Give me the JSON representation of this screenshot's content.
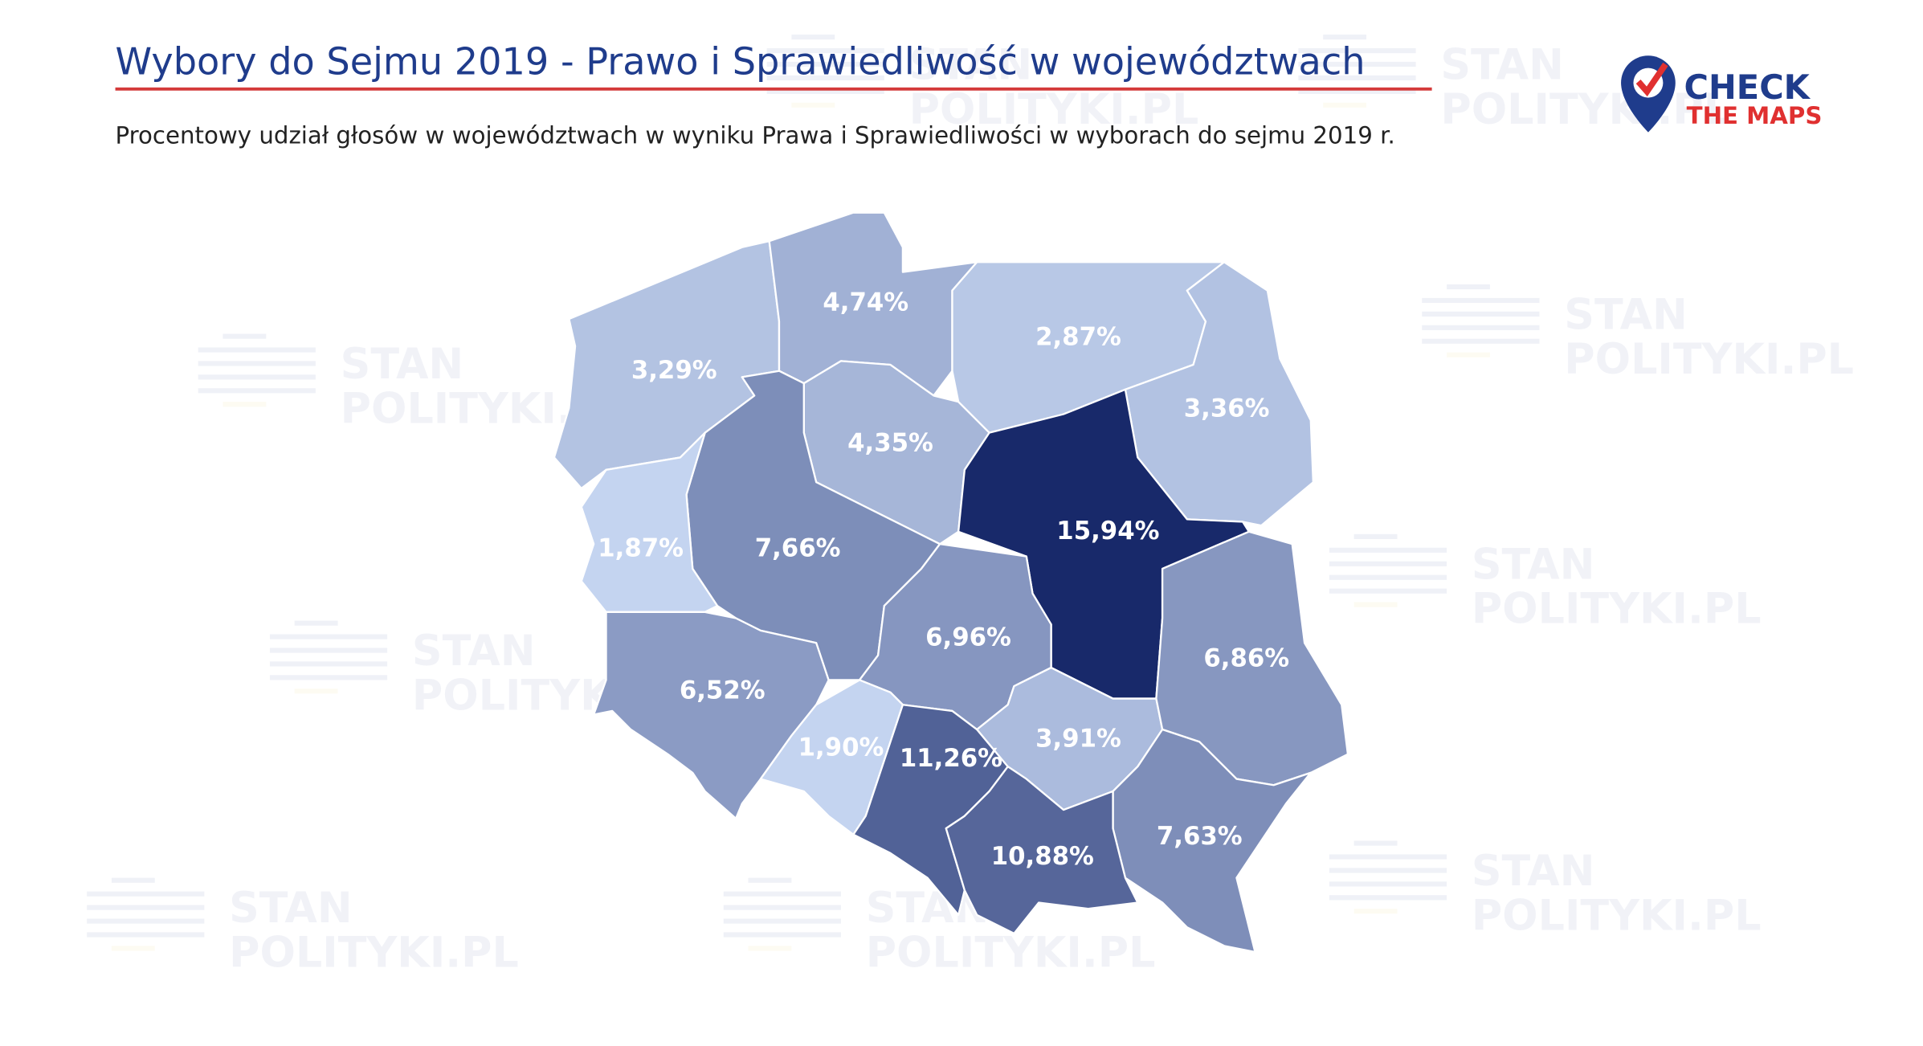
{
  "chart_data": {
    "type": "choropleth",
    "title": "Wybory do Sejmu 2019 - Prawo i Sprawiedliwość w województwach",
    "subtitle": "Procentowy udział głosów w województwach w wyniku Prawa i Sprawiedliwości w wyborach do sejmu 2019 r.",
    "values": [
      3.29,
      4.74,
      2.87,
      3.36,
      4.35,
      15.94,
      7.66,
      1.87,
      6.52,
      6.96,
      1.9,
      11.26,
      3.91,
      6.86,
      7.63,
      10.88
    ],
    "value_labels": [
      "3,29%",
      "4,74%",
      "2,87%",
      "3,36%",
      "4,35%",
      "15,94%",
      "7,66%",
      "1,87%",
      "6,52%",
      "6,96%",
      "1,90%",
      "11,26%",
      "3,91%",
      "6,86%",
      "7,63%",
      "10,88%"
    ],
    "colorscale": [
      "#c4d4f0",
      "#18296a"
    ]
  },
  "logo": {
    "line1": "CHECK",
    "line2": "THE MAPS"
  },
  "watermark": {
    "line1": "STAN",
    "line2": "POLITYKI.PL"
  }
}
